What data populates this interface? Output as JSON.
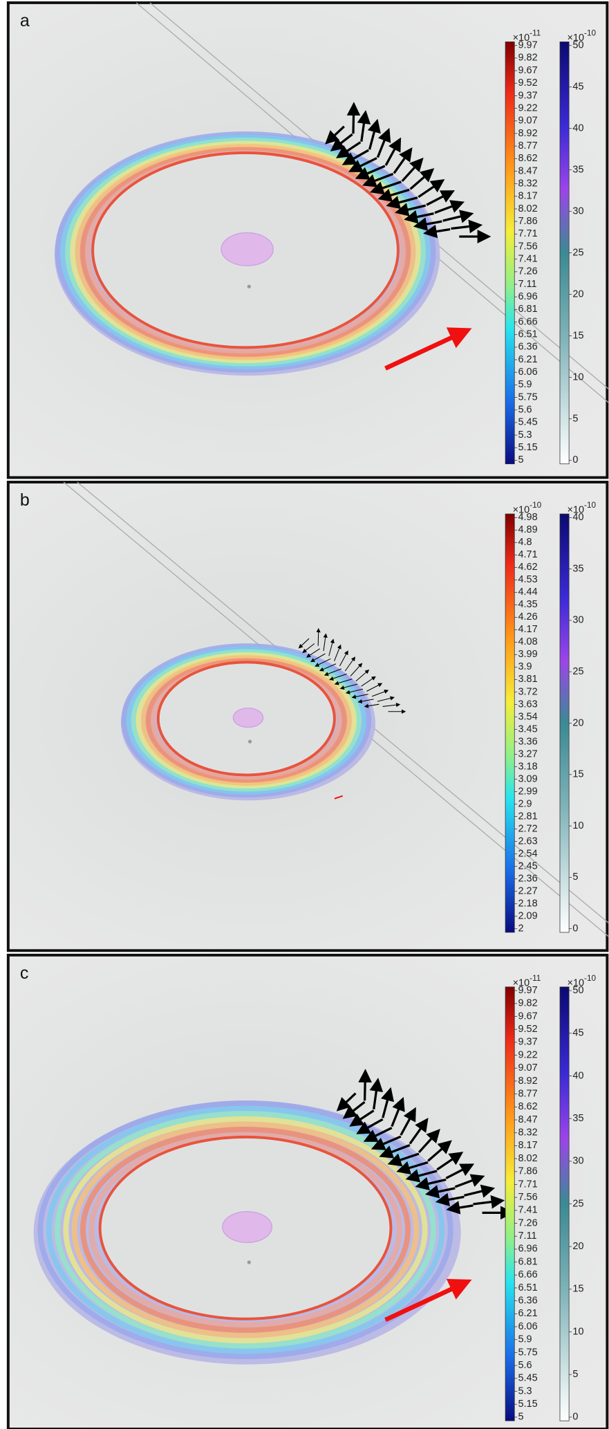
{
  "panels": [
    {
      "label": "a",
      "colorbar1": {
        "base": "×10",
        "exponent": "-11",
        "ticks": [
          "9.97",
          "9.82",
          "9.67",
          "9.52",
          "9.37",
          "9.22",
          "9.07",
          "8.92",
          "8.77",
          "8.62",
          "8.47",
          "8.32",
          "8.17",
          "8.02",
          "7.86",
          "7.71",
          "7.56",
          "7.41",
          "7.26",
          "7.11",
          "6.96",
          "6.81",
          "6.66",
          "6.51",
          "6.36",
          "6.21",
          "6.06",
          "5.9",
          "5.75",
          "5.6",
          "5.45",
          "5.3",
          "5.15",
          "5"
        ]
      },
      "colorbar2": {
        "base": "×10",
        "exponent": "-10",
        "ticks": [
          "50",
          "45",
          "40",
          "35",
          "30",
          "25",
          "20",
          "15",
          "10",
          "5",
          "0"
        ]
      }
    },
    {
      "label": "b",
      "colorbar1": {
        "base": "×10",
        "exponent": "-10",
        "ticks": [
          "4.98",
          "4.89",
          "4.8",
          "4.71",
          "4.62",
          "4.53",
          "4.44",
          "4.35",
          "4.26",
          "4.17",
          "4.08",
          "3.99",
          "3.9",
          "3.81",
          "3.72",
          "3.63",
          "3.54",
          "3.45",
          "3.36",
          "3.27",
          "3.18",
          "3.09",
          "2.99",
          "2.9",
          "2.81",
          "2.72",
          "2.63",
          "2.54",
          "2.45",
          "2.36",
          "2.27",
          "2.18",
          "2.09",
          "2"
        ]
      },
      "colorbar2": {
        "base": "×10",
        "exponent": "-10",
        "ticks": [
          "40",
          "35",
          "30",
          "25",
          "20",
          "15",
          "10",
          "5",
          "0"
        ]
      }
    },
    {
      "label": "c",
      "colorbar1": {
        "base": "×10",
        "exponent": "-11",
        "ticks": [
          "9.97",
          "9.82",
          "9.67",
          "9.52",
          "9.37",
          "9.22",
          "9.07",
          "8.92",
          "8.77",
          "8.62",
          "8.47",
          "8.32",
          "8.17",
          "8.02",
          "7.86",
          "7.71",
          "7.56",
          "7.41",
          "7.26",
          "7.11",
          "6.96",
          "6.81",
          "6.66",
          "6.51",
          "6.36",
          "6.21",
          "6.06",
          "5.9",
          "5.75",
          "5.6",
          "5.45",
          "5.3",
          "5.15",
          "5"
        ]
      },
      "colorbar2": {
        "base": "×10",
        "exponent": "-10",
        "ticks": [
          "50",
          "45",
          "40",
          "35",
          "30",
          "25",
          "20",
          "15",
          "10",
          "5",
          "0"
        ]
      }
    }
  ]
}
